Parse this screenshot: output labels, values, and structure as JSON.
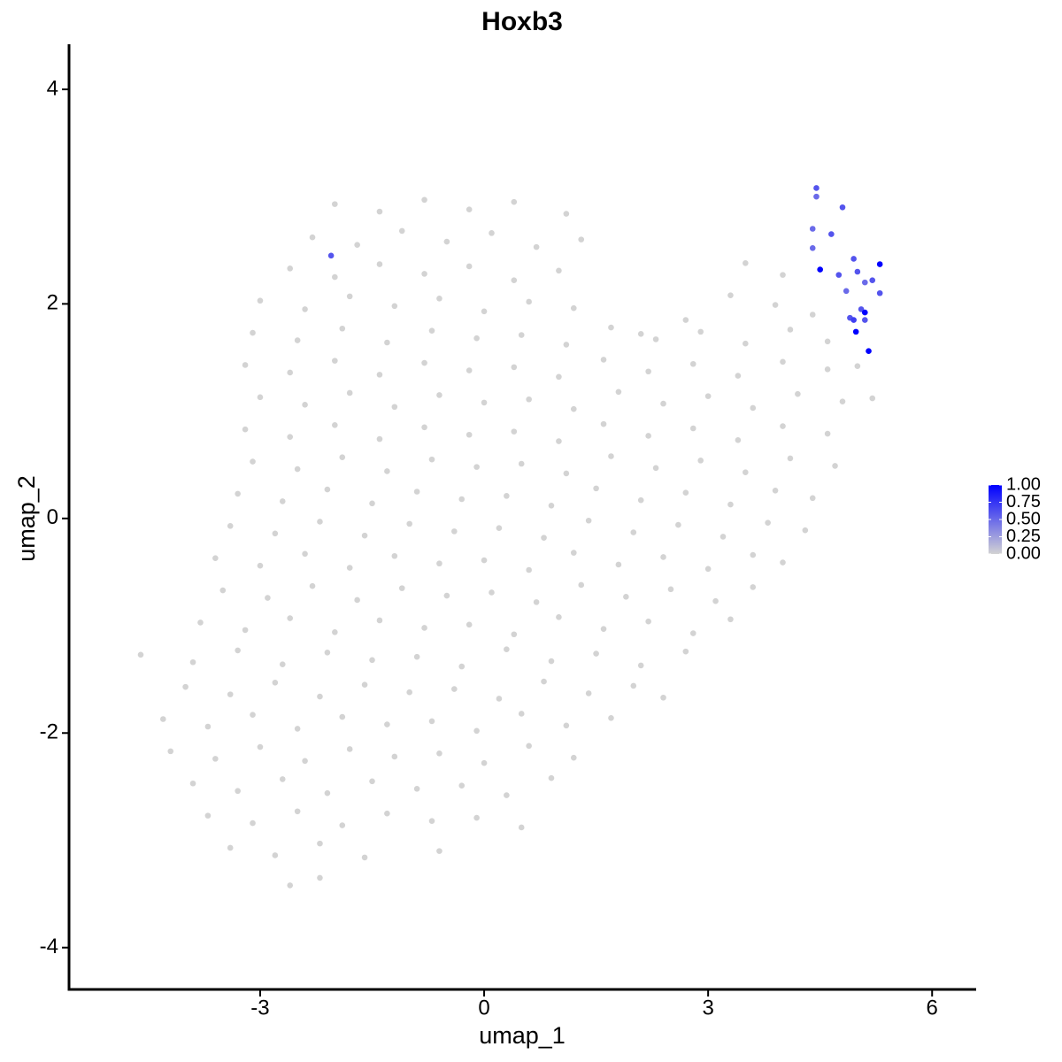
{
  "chart_data": {
    "type": "scatter",
    "title": "Hoxb3",
    "x_label": "umap_1",
    "y_label": "umap_2",
    "xlim": [
      -5.56,
      6.59
    ],
    "ylim": [
      -4.39,
      4.42
    ],
    "xticks": [
      -3,
      0,
      3,
      6
    ],
    "yticks": [
      -4,
      -2,
      0,
      2,
      4
    ],
    "colorbar": {
      "lim": [
        0,
        1
      ],
      "low": "#D3D3D3",
      "high": "#0000FF",
      "ticks": [
        {
          "value": 0,
          "label": "0.00"
        },
        {
          "value": 0.25,
          "label": "0.25"
        },
        {
          "value": 0.5,
          "label": "0.50"
        },
        {
          "value": 0.75,
          "label": "0.75"
        },
        {
          "value": 1,
          "label": "1.00"
        }
      ]
    },
    "series": [
      {
        "x": [
          -2.0,
          -1.4,
          -0.8,
          -0.2,
          0.4,
          1.1,
          -2.3,
          -1.7,
          -1.1,
          -0.5,
          0.1,
          0.7,
          1.3,
          -2.6,
          -2.0,
          -1.4,
          -0.8,
          -0.2,
          0.4,
          1.0,
          3.5,
          4.0,
          -3.0,
          -2.4,
          -1.8,
          -1.2,
          -0.6,
          0.0,
          0.6,
          1.2,
          2.1,
          2.7,
          3.3,
          3.9,
          4.4,
          -3.1,
          -2.5,
          -1.9,
          -1.3,
          -0.7,
          -0.1,
          0.5,
          1.1,
          1.7,
          2.3,
          2.9,
          3.5,
          4.1,
          4.6,
          -3.2,
          -2.6,
          -2.0,
          -1.4,
          -0.8,
          -0.2,
          0.4,
          1.0,
          1.6,
          2.2,
          2.8,
          3.4,
          4.0,
          4.6,
          5.0,
          -3.0,
          -2.4,
          -1.8,
          -1.2,
          -0.6,
          0.0,
          0.6,
          1.2,
          1.8,
          2.4,
          3.0,
          3.6,
          4.2,
          4.8,
          5.2,
          -3.2,
          -2.6,
          -2.0,
          -1.4,
          -0.8,
          -0.2,
          0.4,
          1.0,
          1.6,
          2.2,
          2.8,
          3.4,
          4.0,
          4.6,
          -3.1,
          -2.5,
          -1.9,
          -1.3,
          -0.7,
          -0.1,
          0.5,
          1.1,
          1.7,
          2.3,
          2.9,
          3.5,
          4.1,
          4.7,
          -3.3,
          -2.7,
          -2.1,
          -1.5,
          -0.9,
          -0.3,
          0.3,
          0.9,
          1.5,
          2.1,
          2.7,
          3.3,
          3.9,
          4.4,
          -3.4,
          -2.8,
          -2.2,
          -1.6,
          -1.0,
          -0.4,
          0.2,
          0.8,
          1.4,
          2.0,
          2.6,
          3.2,
          3.8,
          4.3,
          -3.6,
          -3.0,
          -2.4,
          -1.8,
          -1.2,
          -0.6,
          0.0,
          0.6,
          1.2,
          1.8,
          2.4,
          3.0,
          3.6,
          4.0,
          -3.5,
          -2.9,
          -2.3,
          -1.7,
          -1.1,
          -0.5,
          0.1,
          0.7,
          1.3,
          1.9,
          2.5,
          3.1,
          3.6,
          -3.8,
          -3.2,
          -2.6,
          -2.0,
          -1.4,
          -0.8,
          -0.2,
          0.4,
          1.0,
          1.6,
          2.2,
          2.8,
          3.3,
          -4.6,
          -3.9,
          -3.3,
          -2.7,
          -2.1,
          -1.5,
          -0.9,
          -0.3,
          0.3,
          0.9,
          1.5,
          2.1,
          2.7,
          -4.0,
          -3.4,
          -2.8,
          -2.2,
          -1.6,
          -1.0,
          -0.4,
          0.2,
          0.8,
          1.4,
          2.0,
          2.4,
          -4.3,
          -3.7,
          -3.1,
          -2.5,
          -1.9,
          -1.3,
          -0.7,
          -0.1,
          0.5,
          1.1,
          1.7,
          -4.2,
          -3.6,
          -3.0,
          -2.4,
          -1.8,
          -1.2,
          -0.6,
          0.0,
          0.6,
          1.2,
          -3.9,
          -3.3,
          -2.7,
          -2.1,
          -1.5,
          -0.9,
          -0.3,
          0.3,
          0.9,
          -3.7,
          -3.1,
          -2.5,
          -1.9,
          -1.3,
          -0.7,
          -0.1,
          0.5,
          -3.4,
          -2.8,
          -2.2,
          -1.6,
          -0.6,
          -2.6,
          -2.2,
          4.45,
          4.45,
          4.8,
          4.4,
          4.65,
          4.4,
          4.95,
          4.5,
          5.3,
          5.0,
          4.75,
          5.1,
          5.2,
          4.85,
          5.3,
          5.05,
          5.1,
          4.9,
          4.95,
          5.1,
          4.98,
          5.15,
          -2.05
        ],
        "y": [
          2.93,
          2.86,
          2.97,
          2.88,
          2.95,
          2.84,
          2.62,
          2.55,
          2.68,
          2.58,
          2.66,
          2.53,
          2.6,
          2.33,
          2.25,
          2.37,
          2.28,
          2.35,
          2.22,
          2.31,
          2.38,
          2.27,
          2.03,
          1.95,
          2.07,
          1.98,
          2.05,
          1.93,
          2.02,
          1.96,
          1.72,
          1.85,
          2.08,
          1.99,
          1.9,
          1.73,
          1.66,
          1.77,
          1.64,
          1.75,
          1.68,
          1.71,
          1.62,
          1.78,
          1.67,
          1.74,
          1.63,
          1.76,
          1.65,
          1.43,
          1.36,
          1.47,
          1.34,
          1.45,
          1.38,
          1.41,
          1.32,
          1.48,
          1.37,
          1.44,
          1.33,
          1.46,
          1.39,
          1.42,
          1.13,
          1.06,
          1.17,
          1.04,
          1.15,
          1.08,
          1.11,
          1.02,
          1.18,
          1.07,
          1.14,
          1.03,
          1.16,
          1.09,
          1.12,
          0.83,
          0.76,
          0.87,
          0.74,
          0.85,
          0.78,
          0.81,
          0.72,
          0.88,
          0.77,
          0.84,
          0.73,
          0.86,
          0.79,
          0.53,
          0.46,
          0.57,
          0.44,
          0.55,
          0.48,
          0.51,
          0.42,
          0.58,
          0.47,
          0.54,
          0.43,
          0.56,
          0.49,
          0.23,
          0.16,
          0.27,
          0.14,
          0.25,
          0.18,
          0.21,
          0.12,
          0.28,
          0.17,
          0.24,
          0.13,
          0.26,
          0.19,
          -0.07,
          -0.14,
          -0.03,
          -0.16,
          -0.05,
          -0.12,
          -0.09,
          -0.18,
          -0.02,
          -0.13,
          -0.06,
          -0.17,
          -0.04,
          -0.11,
          -0.37,
          -0.44,
          -0.33,
          -0.46,
          -0.35,
          -0.42,
          -0.39,
          -0.48,
          -0.32,
          -0.43,
          -0.36,
          -0.47,
          -0.34,
          -0.41,
          -0.67,
          -0.74,
          -0.63,
          -0.76,
          -0.65,
          -0.72,
          -0.69,
          -0.78,
          -0.62,
          -0.73,
          -0.66,
          -0.77,
          -0.64,
          -0.97,
          -1.04,
          -0.93,
          -1.06,
          -0.95,
          -1.02,
          -0.99,
          -1.08,
          -0.92,
          -1.03,
          -0.96,
          -1.07,
          -0.94,
          -1.27,
          -1.34,
          -1.23,
          -1.36,
          -1.25,
          -1.32,
          -1.29,
          -1.38,
          -1.22,
          -1.33,
          -1.26,
          -1.37,
          -1.24,
          -1.57,
          -1.64,
          -1.53,
          -1.66,
          -1.55,
          -1.62,
          -1.59,
          -1.68,
          -1.52,
          -1.63,
          -1.56,
          -1.67,
          -1.87,
          -1.94,
          -1.83,
          -1.96,
          -1.85,
          -1.92,
          -1.89,
          -1.98,
          -1.82,
          -1.93,
          -1.86,
          -2.17,
          -2.24,
          -2.13,
          -2.26,
          -2.15,
          -2.22,
          -2.19,
          -2.28,
          -2.12,
          -2.23,
          -2.47,
          -2.54,
          -2.43,
          -2.56,
          -2.45,
          -2.52,
          -2.49,
          -2.58,
          -2.42,
          -2.77,
          -2.84,
          -2.73,
          -2.86,
          -2.75,
          -2.82,
          -2.79,
          -2.88,
          -3.07,
          -3.14,
          -3.03,
          -3.16,
          -3.1,
          -3.42,
          -3.35,
          3.08,
          3.0,
          2.9,
          2.7,
          2.65,
          2.52,
          2.42,
          2.32,
          2.37,
          2.3,
          2.27,
          2.2,
          2.22,
          2.12,
          2.1,
          1.95,
          1.92,
          1.87,
          1.85,
          1.85,
          1.74,
          1.56,
          2.45
        ],
        "values": [
          0,
          0,
          0,
          0,
          0,
          0,
          0,
          0,
          0,
          0,
          0,
          0,
          0,
          0,
          0,
          0,
          0,
          0,
          0,
          0,
          0,
          0,
          0,
          0,
          0,
          0,
          0,
          0,
          0,
          0,
          0,
          0,
          0,
          0,
          0,
          0,
          0,
          0,
          0,
          0,
          0,
          0,
          0,
          0,
          0,
          0,
          0,
          0,
          0,
          0,
          0,
          0,
          0,
          0,
          0,
          0,
          0,
          0,
          0,
          0,
          0,
          0,
          0,
          0,
          0,
          0,
          0,
          0,
          0,
          0,
          0,
          0,
          0,
          0,
          0,
          0,
          0,
          0,
          0,
          0,
          0,
          0,
          0,
          0,
          0,
          0,
          0,
          0,
          0,
          0,
          0,
          0,
          0,
          0,
          0,
          0,
          0,
          0,
          0,
          0,
          0,
          0,
          0,
          0,
          0,
          0,
          0,
          0,
          0,
          0,
          0,
          0,
          0,
          0,
          0,
          0,
          0,
          0,
          0,
          0,
          0,
          0,
          0,
          0,
          0,
          0,
          0,
          0,
          0,
          0,
          0,
          0,
          0,
          0,
          0,
          0,
          0,
          0,
          0,
          0,
          0,
          0,
          0,
          0,
          0,
          0,
          0,
          0,
          0,
          0,
          0,
          0,
          0,
          0,
          0,
          0,
          0,
          0,
          0,
          0,
          0,
          0,
          0,
          0,
          0,
          0,
          0,
          0,
          0,
          0,
          0,
          0,
          0,
          0,
          0,
          0,
          0,
          0,
          0,
          0,
          0,
          0,
          0,
          0,
          0,
          0,
          0,
          0,
          0,
          0,
          0,
          0,
          0,
          0,
          0,
          0,
          0,
          0,
          0,
          0,
          0,
          0,
          0,
          0,
          0,
          0,
          0,
          0,
          0,
          0,
          0,
          0,
          0,
          0,
          0,
          0,
          0,
          0,
          0,
          0,
          0,
          0,
          0,
          0,
          0,
          0,
          0,
          0,
          0,
          0,
          0,
          0,
          0,
          0,
          0,
          0,
          0,
          0,
          0,
          0,
          0,
          0,
          0,
          0,
          0,
          0.6,
          0.5,
          0.6,
          0.5,
          0.6,
          0.5,
          0.6,
          1.0,
          1.0,
          0.6,
          0.6,
          0.5,
          0.6,
          0.5,
          0.6,
          0.6,
          1.0,
          0.6,
          0.7,
          0.6,
          1.0,
          1.0,
          0.6
        ]
      }
    ]
  }
}
